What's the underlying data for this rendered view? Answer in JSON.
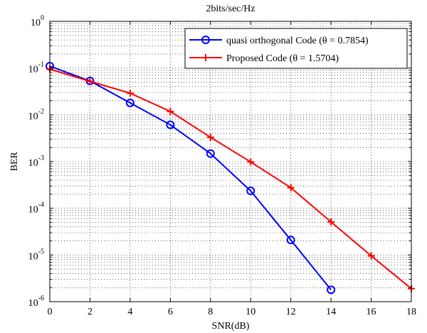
{
  "chart_data": {
    "type": "line",
    "title": "2bits/sec/Hz",
    "xlabel": "SNR(dB)",
    "ylabel": "BER",
    "xlim": [
      0,
      18
    ],
    "ylim": [
      1e-06,
      1
    ],
    "yscale": "log",
    "grid": true,
    "grid_style": "dotted",
    "legend_position": "top-right",
    "x_ticks": [
      0,
      2,
      4,
      6,
      8,
      10,
      12,
      14,
      16,
      18
    ],
    "x_tick_labels": [
      "0",
      "2",
      "4",
      "6",
      "8",
      "10",
      "12",
      "14",
      "16",
      "18"
    ],
    "y_ticks": [
      {
        "base": "10",
        "exp": "0",
        "value": 1
      },
      {
        "base": "10",
        "exp": "-1",
        "value": 0.1
      },
      {
        "base": "10",
        "exp": "-2",
        "value": 0.01
      },
      {
        "base": "10",
        "exp": "-3",
        "value": 0.001
      },
      {
        "base": "10",
        "exp": "-4",
        "value": 0.0001
      },
      {
        "base": "10",
        "exp": "-5",
        "value": 1e-05
      },
      {
        "base": "10",
        "exp": "-6",
        "value": 1e-06
      }
    ],
    "series": [
      {
        "name": "quasi  orthogonal Code (θ = 0.7854)",
        "color": "#0000ff",
        "marker": "circle",
        "x": [
          0,
          2,
          4,
          6,
          8,
          10,
          12,
          14
        ],
        "y": [
          0.11,
          0.053,
          0.018,
          0.0061,
          0.00148,
          0.000235,
          2.09e-05,
          1.8e-06
        ]
      },
      {
        "name": "Proposed Code (θ = 1.5704)",
        "color": "#ff0000",
        "marker": "plus",
        "x": [
          0,
          2,
          4,
          6,
          8,
          10,
          12,
          14,
          16,
          18
        ],
        "y": [
          0.095,
          0.052,
          0.029,
          0.0118,
          0.0033,
          0.00098,
          0.000275,
          5.1e-05,
          9.6e-06,
          1.9e-06
        ]
      }
    ]
  }
}
